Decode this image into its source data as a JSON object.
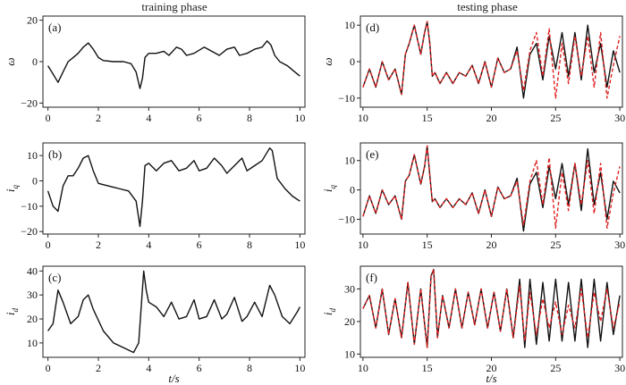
{
  "column_titles": {
    "left": "training phase",
    "right": "testing phase"
  },
  "colors": {
    "true_series": "#111111",
    "predicted_series": "#e02020"
  },
  "chart_data": [
    {
      "panel": "(a)",
      "type": "line",
      "ylabel": "ω",
      "ylabel_sub": "",
      "xlim": [
        -0.2,
        10.2
      ],
      "ylim": [
        -22,
        22
      ],
      "xticks": [
        0,
        2,
        4,
        6,
        8,
        10
      ],
      "yticks": [
        -20,
        0,
        20
      ],
      "xlabel": "",
      "series": [
        {
          "color": "#111111",
          "style": "solid",
          "x": [
            0,
            0.2,
            0.4,
            0.6,
            0.8,
            1.0,
            1.2,
            1.4,
            1.6,
            1.8,
            2.0,
            2.2,
            2.6,
            3.0,
            3.3,
            3.5,
            3.65,
            3.75,
            3.85,
            4.0,
            4.3,
            4.6,
            4.8,
            5.1,
            5.3,
            5.5,
            5.8,
            6.2,
            6.5,
            6.8,
            7.1,
            7.4,
            7.6,
            7.9,
            8.2,
            8.5,
            8.7,
            8.85,
            9.0,
            9.2,
            9.5,
            9.8,
            10.0
          ],
          "y": [
            -2,
            -6,
            -10,
            -5,
            0,
            2,
            4,
            7,
            9,
            6,
            2,
            0.5,
            0,
            0,
            -1,
            -5,
            -13,
            -8,
            2,
            4,
            4,
            5,
            3,
            7,
            6,
            3,
            4,
            7,
            5,
            3,
            6,
            7,
            3,
            4,
            6,
            7,
            10,
            8,
            3,
            0,
            -2,
            -5,
            -7
          ]
        }
      ]
    },
    {
      "panel": "(b)",
      "type": "line",
      "ylabel": "i",
      "ylabel_sub": "q",
      "xlim": [
        -0.2,
        10.2
      ],
      "ylim": [
        -21,
        15
      ],
      "xticks": [
        0,
        2,
        4,
        6,
        8,
        10
      ],
      "yticks": [
        -20,
        -10,
        0,
        10
      ],
      "xlabel": "",
      "series": [
        {
          "color": "#111111",
          "style": "solid",
          "x": [
            0,
            0.2,
            0.4,
            0.6,
            0.8,
            1.0,
            1.2,
            1.4,
            1.6,
            1.8,
            2.0,
            2.4,
            2.8,
            3.2,
            3.5,
            3.65,
            3.75,
            3.85,
            4.0,
            4.3,
            4.6,
            4.9,
            5.2,
            5.5,
            5.8,
            6.0,
            6.3,
            6.6,
            6.9,
            7.1,
            7.4,
            7.7,
            7.9,
            8.2,
            8.5,
            8.8,
            8.9,
            9.1,
            9.4,
            9.7,
            10.0
          ],
          "y": [
            -4,
            -10,
            -12,
            -2,
            2,
            2,
            5,
            9,
            10,
            4,
            -1,
            -2,
            -3,
            -4,
            -8,
            -18,
            -8,
            6,
            7,
            4,
            7,
            8,
            4,
            5,
            8,
            4,
            5,
            9,
            6,
            3,
            6,
            9,
            4,
            6,
            8,
            13,
            12,
            1,
            -3,
            -6,
            -8
          ]
        }
      ]
    },
    {
      "panel": "(c)",
      "type": "line",
      "ylabel": "i",
      "ylabel_sub": "d",
      "xlim": [
        -0.2,
        10.2
      ],
      "ylim": [
        4,
        42
      ],
      "xticks": [
        0,
        2,
        4,
        6,
        8,
        10
      ],
      "yticks": [
        10,
        20,
        30,
        40
      ],
      "xlabel": "t/s",
      "series": [
        {
          "color": "#111111",
          "style": "solid",
          "x": [
            0,
            0.2,
            0.4,
            0.6,
            0.9,
            1.2,
            1.4,
            1.6,
            1.8,
            2.2,
            2.6,
            3.0,
            3.4,
            3.6,
            3.8,
            3.9,
            4.0,
            4.3,
            4.6,
            4.9,
            5.2,
            5.5,
            5.8,
            6.0,
            6.3,
            6.6,
            6.9,
            7.1,
            7.4,
            7.7,
            7.9,
            8.2,
            8.5,
            8.8,
            9.0,
            9.3,
            9.6,
            9.9,
            10.0
          ],
          "y": [
            15,
            18,
            32,
            27,
            18,
            21,
            28,
            30,
            24,
            15,
            10,
            8,
            6,
            10,
            40,
            32,
            27,
            25,
            21,
            27,
            20,
            21,
            28,
            20,
            21,
            28,
            20,
            22,
            29,
            19,
            21,
            27,
            21,
            34,
            30,
            21,
            18,
            23,
            25
          ]
        }
      ]
    },
    {
      "panel": "(d)",
      "type": "line",
      "ylabel": "ω",
      "ylabel_sub": "",
      "xlim": [
        9.8,
        30.2
      ],
      "ylim": [
        -12.5,
        12.5
      ],
      "xticks": [
        10,
        15,
        20,
        25,
        30
      ],
      "yticks": [
        -10,
        0,
        10
      ],
      "xlabel": "",
      "series": [
        {
          "color": "#111111",
          "style": "solid",
          "x": [
            10,
            10.5,
            11,
            11.5,
            12,
            12.5,
            13,
            13.3,
            13.6,
            14,
            14.5,
            14.8,
            15,
            15.2,
            15.4,
            15.6,
            16,
            16.5,
            17,
            17.5,
            18,
            18.5,
            19,
            19.5,
            20,
            20.5,
            21,
            21.5,
            22,
            22.5,
            23,
            23.5,
            24,
            24.5,
            25,
            25.5,
            26,
            26.5,
            27,
            27.5,
            28,
            28.5,
            29,
            29.5,
            30
          ],
          "y": [
            -7,
            -2,
            -7,
            0,
            -5,
            -2,
            -9,
            2,
            5,
            10,
            2,
            8,
            11,
            5,
            -4,
            -3,
            -6,
            -3,
            -6,
            -3,
            -4,
            -1,
            -6,
            0,
            -7,
            1,
            -3,
            -2,
            4,
            -10,
            2,
            5,
            -5,
            7,
            -2,
            8,
            -4,
            8,
            -5,
            10,
            -3,
            5,
            -7,
            3,
            -3
          ]
        },
        {
          "color": "#e02020",
          "style": "dashed",
          "x": [
            10,
            10.5,
            11,
            11.5,
            12,
            12.5,
            13,
            13.3,
            13.6,
            14,
            14.5,
            14.8,
            15,
            15.2,
            15.4,
            15.6,
            16,
            16.5,
            17,
            17.5,
            18,
            18.5,
            19,
            19.5,
            20,
            20.5,
            21,
            21.5,
            22,
            22.5,
            23,
            23.5,
            24,
            24.5,
            25,
            25.5,
            26,
            26.5,
            27,
            27.5,
            28,
            28.5,
            29,
            29.5,
            30
          ],
          "y": [
            -7,
            -2,
            -7,
            0,
            -5,
            -2,
            -9,
            2,
            5,
            10,
            2,
            8,
            11,
            5,
            -4,
            -3,
            -6,
            -3,
            -6,
            -3,
            -4,
            -1,
            -6,
            0,
            -7,
            1,
            -3,
            -2,
            3,
            -8,
            3,
            8,
            -4,
            9,
            -10,
            5,
            -6,
            7,
            -4,
            7,
            -7,
            8,
            -10,
            -1,
            7
          ]
        }
      ]
    },
    {
      "panel": "(e)",
      "type": "line",
      "ylabel": "i",
      "ylabel_sub": "q",
      "xlim": [
        9.8,
        30.2
      ],
      "ylim": [
        -15,
        16
      ],
      "xticks": [
        10,
        15,
        20,
        25,
        30
      ],
      "yticks": [
        -10,
        0,
        10
      ],
      "xlabel": "",
      "series": [
        {
          "color": "#111111",
          "style": "solid",
          "x": [
            10,
            10.5,
            11,
            11.5,
            12,
            12.5,
            13,
            13.3,
            13.6,
            14,
            14.5,
            14.8,
            15,
            15.2,
            15.4,
            15.6,
            16,
            16.5,
            17,
            17.5,
            18,
            18.5,
            19,
            19.5,
            20,
            20.5,
            21,
            21.5,
            22,
            22.5,
            23,
            23.5,
            24,
            24.5,
            25,
            25.5,
            26,
            26.5,
            27,
            27.5,
            28,
            28.5,
            29,
            29.5,
            30
          ],
          "y": [
            -9,
            -2,
            -8,
            0,
            -5,
            -2,
            -10,
            3,
            5,
            12,
            2,
            8,
            15,
            5,
            -4,
            -3,
            -6,
            -3,
            -6,
            -3,
            -5,
            -1,
            -8,
            0,
            -9,
            1,
            -3,
            -2,
            4,
            -14,
            2,
            6,
            -6,
            8,
            -3,
            9,
            -5,
            9,
            -7,
            14,
            -5,
            6,
            -10,
            3,
            -1
          ]
        },
        {
          "color": "#e02020",
          "style": "dashed",
          "x": [
            10,
            10.5,
            11,
            11.5,
            12,
            12.5,
            13,
            13.3,
            13.6,
            14,
            14.5,
            14.8,
            15,
            15.2,
            15.4,
            15.6,
            16,
            16.5,
            17,
            17.5,
            18,
            18.5,
            19,
            19.5,
            20,
            20.5,
            21,
            21.5,
            22,
            22.5,
            23,
            23.5,
            24,
            24.5,
            25,
            25.5,
            26,
            26.5,
            27,
            27.5,
            28,
            28.5,
            29,
            29.5,
            30
          ],
          "y": [
            -9,
            -2,
            -8,
            0,
            -5,
            -2,
            -10,
            3,
            5,
            12,
            2,
            8,
            15,
            5,
            -4,
            -3,
            -6,
            -3,
            -6,
            -3,
            -5,
            -1,
            -8,
            0,
            -9,
            1,
            -3,
            -2,
            3,
            -12,
            3,
            10,
            -5,
            11,
            -13,
            6,
            -7,
            9,
            -5,
            10,
            -8,
            9,
            -13,
            -1,
            8
          ]
        }
      ]
    },
    {
      "panel": "(f)",
      "type": "line",
      "ylabel": "i",
      "ylabel_sub": "d",
      "xlim": [
        9.8,
        30.2
      ],
      "ylim": [
        9,
        37
      ],
      "xticks": [
        10,
        15,
        20,
        25,
        30
      ],
      "yticks": [
        10,
        20,
        30
      ],
      "xlabel": "t/s",
      "series": [
        {
          "color": "#111111",
          "style": "solid",
          "x": [
            10,
            10.5,
            11,
            11.5,
            12,
            12.5,
            13,
            13.5,
            14,
            14.5,
            15,
            15.3,
            15.5,
            15.8,
            16.2,
            16.7,
            17.2,
            17.7,
            18.2,
            18.7,
            19.2,
            19.7,
            20.2,
            20.7,
            21.2,
            21.7,
            22.2,
            22.6,
            23,
            23.5,
            24,
            24.5,
            25,
            25.5,
            26,
            26.5,
            27,
            27.5,
            28,
            28.5,
            29,
            29.5,
            30
          ],
          "y": [
            24,
            28,
            18,
            30,
            16,
            27,
            15,
            32,
            13,
            30,
            12,
            34,
            36,
            15,
            28,
            18,
            30,
            18,
            29,
            19,
            30,
            18,
            29,
            17,
            30,
            15,
            33,
            12,
            33,
            13,
            32,
            14,
            33,
            14,
            32,
            14,
            33,
            12,
            33,
            14,
            32,
            16,
            28
          ]
        },
        {
          "color": "#e02020",
          "style": "dashed",
          "x": [
            10,
            10.5,
            11,
            11.5,
            12,
            12.5,
            13,
            13.5,
            14,
            14.5,
            15,
            15.3,
            15.5,
            15.8,
            16.2,
            16.7,
            17.2,
            17.7,
            18.2,
            18.7,
            19.2,
            19.7,
            20.2,
            20.7,
            21.2,
            21.7,
            22.2,
            22.6,
            23,
            23.5,
            24,
            24.5,
            25,
            25.5,
            26,
            26.5,
            27,
            27.5,
            28,
            28.5,
            29,
            29.5,
            30
          ],
          "y": [
            24,
            28,
            18,
            30,
            16,
            27,
            15,
            32,
            13,
            30,
            12,
            34,
            36,
            15,
            28,
            18,
            30,
            18,
            29,
            19,
            30,
            18,
            29,
            17,
            30,
            15,
            31,
            14,
            29,
            16,
            27,
            18,
            26,
            16,
            25,
            18,
            30,
            15,
            29,
            20,
            30,
            18,
            26
          ]
        }
      ]
    }
  ]
}
